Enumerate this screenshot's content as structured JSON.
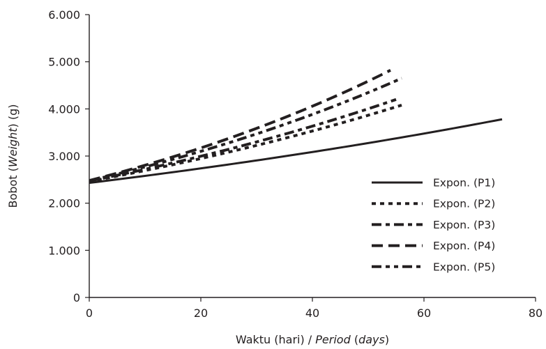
{
  "chart_data": {
    "type": "line",
    "xlabel_parts": [
      {
        "text": "Waktu (hari) / ",
        "italic": false
      },
      {
        "text": "Period",
        "italic": true
      },
      {
        "text": " (",
        "italic": false
      },
      {
        "text": "days",
        "italic": true
      },
      {
        "text": ")",
        "italic": false
      }
    ],
    "ylabel_parts": [
      {
        "text": "Bobot (",
        "italic": false
      },
      {
        "text": "Weight",
        "italic": true
      },
      {
        "text": ") (g)",
        "italic": false
      }
    ],
    "xlim": [
      0,
      80
    ],
    "ylim": [
      0,
      6000
    ],
    "x_ticks": [
      0,
      20,
      40,
      60,
      80
    ],
    "x_tick_labels": [
      "0",
      "20",
      "40",
      "60",
      "80"
    ],
    "y_ticks": [
      0,
      1000,
      2000,
      3000,
      4000,
      5000,
      6000
    ],
    "y_tick_labels": [
      "0",
      "1.000",
      "2.000",
      "3.000",
      "4.000",
      "5.000",
      "6.000"
    ],
    "grid": false,
    "legend_position": "bottom-right",
    "colors": {
      "line": "#231f20"
    },
    "series": [
      {
        "name": "Expon. (P1)",
        "dash": "solid",
        "x": [
          0,
          74
        ],
        "y": [
          2430,
          3780
        ]
      },
      {
        "name": "Expon. (P2)",
        "dash": "short-dash",
        "x": [
          0,
          56
        ],
        "y": [
          2460,
          4080
        ]
      },
      {
        "name": "Expon. (P3)",
        "dash": "long-short",
        "x": [
          0,
          55
        ],
        "y": [
          2470,
          4200
        ]
      },
      {
        "name": "Expon. (P4)",
        "dash": "long",
        "x": [
          0,
          54
        ],
        "y": [
          2480,
          4820
        ]
      },
      {
        "name": "Expon. (P5)",
        "dash": "long-short-short",
        "x": [
          0,
          56
        ],
        "y": [
          2475,
          4650
        ]
      }
    ]
  }
}
